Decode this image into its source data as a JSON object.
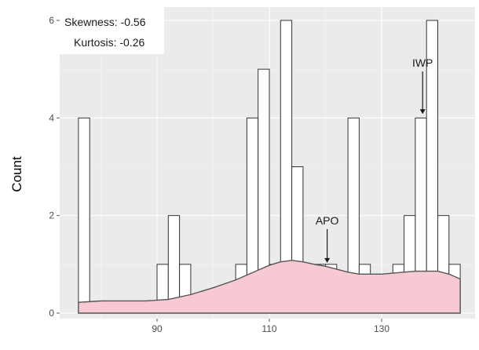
{
  "chart_data": {
    "type": "histogram",
    "xlabel": "",
    "ylabel": "Count",
    "x_ticks": [
      90,
      110,
      130
    ],
    "y_ticks": [
      0,
      2,
      4,
      6
    ],
    "xlim": [
      74,
      148
    ],
    "ylim": [
      -0.3,
      6.2
    ],
    "bins": [
      {
        "x": 77,
        "count": 4
      },
      {
        "x": 79,
        "count": 0
      },
      {
        "x": 81,
        "count": 0
      },
      {
        "x": 83,
        "count": 0
      },
      {
        "x": 85,
        "count": 0
      },
      {
        "x": 87,
        "count": 0
      },
      {
        "x": 89,
        "count": 0
      },
      {
        "x": 91,
        "count": 1
      },
      {
        "x": 93,
        "count": 2
      },
      {
        "x": 95,
        "count": 1
      },
      {
        "x": 97,
        "count": 0
      },
      {
        "x": 99,
        "count": 0
      },
      {
        "x": 101,
        "count": 0
      },
      {
        "x": 103,
        "count": 0
      },
      {
        "x": 105,
        "count": 1
      },
      {
        "x": 107,
        "count": 4
      },
      {
        "x": 109,
        "count": 5
      },
      {
        "x": 111,
        "count": 1
      },
      {
        "x": 113,
        "count": 6
      },
      {
        "x": 115,
        "count": 3
      },
      {
        "x": 117,
        "count": 1
      },
      {
        "x": 119,
        "count": 1
      },
      {
        "x": 121,
        "count": 1
      },
      {
        "x": 123,
        "count": 0
      },
      {
        "x": 125,
        "count": 4
      },
      {
        "x": 127,
        "count": 1
      },
      {
        "x": 129,
        "count": 0
      },
      {
        "x": 131,
        "count": 0
      },
      {
        "x": 133,
        "count": 1
      },
      {
        "x": 135,
        "count": 2
      },
      {
        "x": 137,
        "count": 4
      },
      {
        "x": 139,
        "count": 6
      },
      {
        "x": 141,
        "count": 2
      },
      {
        "x": 143,
        "count": 1
      }
    ],
    "binwidth": 2,
    "density_curve": {
      "x": [
        76,
        80,
        84,
        88,
        92,
        96,
        100,
        104,
        108,
        110,
        112,
        114,
        116,
        118,
        120,
        122,
        124,
        126,
        128,
        130,
        132,
        134,
        136,
        138,
        140,
        142,
        144
      ],
      "y": [
        0.22,
        0.25,
        0.25,
        0.25,
        0.28,
        0.38,
        0.52,
        0.68,
        0.88,
        0.98,
        1.05,
        1.08,
        1.05,
        1.0,
        0.96,
        0.9,
        0.84,
        0.8,
        0.8,
        0.8,
        0.82,
        0.84,
        0.86,
        0.86,
        0.86,
        0.8,
        0.7
      ]
    },
    "stats_box": {
      "skewness_text": "Skewness: -0.56",
      "kurtosis_text": "Kurtosis: -0.26"
    },
    "annotations": [
      {
        "label": "IWP",
        "x": 137.3,
        "y_text": 5.05,
        "y_arrow_end": 4.05
      },
      {
        "label": "APO",
        "x": 120.3,
        "y_text": 1.82,
        "y_arrow_end": 1.0
      }
    ]
  }
}
